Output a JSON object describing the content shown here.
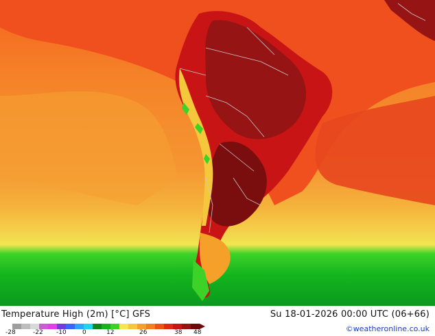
{
  "header": {
    "title": "Temperature High (2m) [°C] GFS",
    "datetime": "Su 18-01-2026 00:00 UTC (06+66)",
    "credit": "©weatheronline.co.uk"
  },
  "legend": {
    "ticks": [
      "-28",
      "-22",
      "-10",
      "0",
      "12",
      "26",
      "38",
      "48"
    ],
    "colors": [
      "#9e9e9e",
      "#bdbdbd",
      "#d9d9d9",
      "#c85ed2",
      "#e040e8",
      "#6e3ce0",
      "#3c64ff",
      "#2aa8ff",
      "#1ad8e8",
      "#0a8a1e",
      "#14b41e",
      "#3cd228",
      "#f5e650",
      "#f5c83c",
      "#f5a028",
      "#f57d1e",
      "#f05014",
      "#e12814",
      "#c81414",
      "#961414",
      "#6e0a0a"
    ]
  },
  "palette": {
    "ocean_warm": "#f58c1e",
    "ocean_hot": "#f0501e",
    "land_hot": "#c81414",
    "land_very_hot": "#961414",
    "cold_green": "#14b41e",
    "border": "#c8c8c8"
  },
  "map": {
    "region": "South America"
  }
}
